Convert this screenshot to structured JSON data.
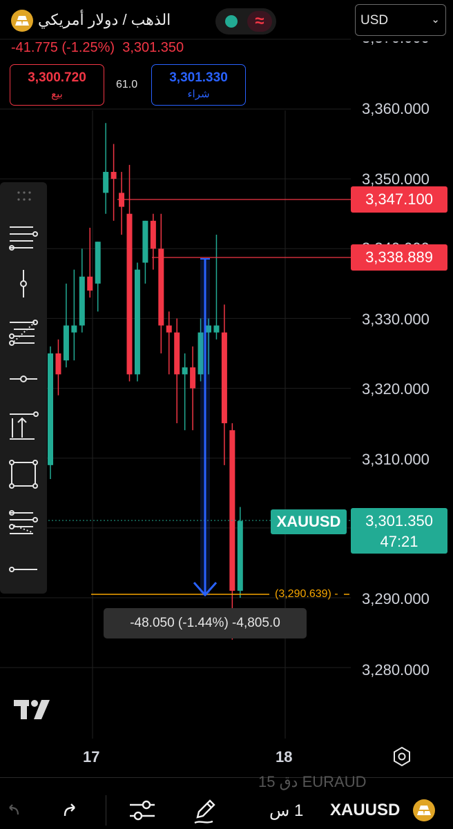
{
  "header": {
    "instrument_title": "الذهب / دولار أمريكي",
    "currency": "USD",
    "change": "-41.775 (-1.25%)",
    "last_price": "3,301.350"
  },
  "trade": {
    "sell_price": "3,300.720",
    "sell_label": "بيع",
    "buy_price": "3,301.330",
    "buy_label": "شراء",
    "spread": "61.0"
  },
  "axis": {
    "y_ticks": [
      "3,360.000",
      "3,350.000",
      "3,340.000",
      "3,330.000",
      "3,320.000",
      "3,310.000",
      "3,290.000",
      "3,280.000"
    ],
    "y_top_partial": "3,370.000",
    "x_ticks": [
      "17",
      "18"
    ]
  },
  "levels": {
    "line1": "3,347.100",
    "line2": "3,338.889",
    "current_symbol": "XAUUSD",
    "current_price": "3,301.350",
    "countdown": "47:21",
    "target_label": "(3,290.639)",
    "measure_text": "-48.050 (-1.44%) -4,805.0"
  },
  "toolbar_items": [
    "horizontal-rays-icon",
    "vertical-line-icon",
    "fib-retracement-icon",
    "horizontal-ray-icon",
    "long-position-icon",
    "rectangle-icon",
    "fib-extension-icon",
    "horizontal-line-icon"
  ],
  "bottom": {
    "ghost_text": "15 دق   EURAUD",
    "timeframe": "1 س",
    "symbol": "XAUUSD"
  },
  "colors": {
    "up": "#22ab94",
    "down": "#f23645",
    "measure": "#2962ff",
    "target": "#f7a600"
  },
  "chart_data": {
    "type": "candlestick",
    "y_range": [
      3276,
      3376
    ],
    "candles": [
      {
        "o": 3309,
        "h": 3326,
        "l": 3307,
        "c": 3325
      },
      {
        "o": 3325,
        "h": 3327,
        "l": 3319,
        "c": 3322
      },
      {
        "o": 3324,
        "h": 3335,
        "l": 3323,
        "c": 3329
      },
      {
        "o": 3328,
        "h": 3337,
        "l": 3324,
        "c": 3329
      },
      {
        "o": 3329,
        "h": 3340,
        "l": 3328,
        "c": 3336
      },
      {
        "o": 3336,
        "h": 3343,
        "l": 3333,
        "c": 3334
      },
      {
        "o": 3335,
        "h": 3341,
        "l": 3331,
        "c": 3341
      },
      {
        "o": 3348,
        "h": 3358,
        "l": 3345,
        "c": 3351
      },
      {
        "o": 3351,
        "h": 3355,
        "l": 3344,
        "c": 3350
      },
      {
        "o": 3348,
        "h": 3351,
        "l": 3342,
        "c": 3346
      },
      {
        "o": 3345,
        "h": 3352,
        "l": 3321,
        "c": 3322
      },
      {
        "o": 3322,
        "h": 3338,
        "l": 3321,
        "c": 3337
      },
      {
        "o": 3338,
        "h": 3344,
        "l": 3335,
        "c": 3344
      },
      {
        "o": 3344,
        "h": 3345,
        "l": 3337,
        "c": 3340
      },
      {
        "o": 3340,
        "h": 3345,
        "l": 3325,
        "c": 3329
      },
      {
        "o": 3329,
        "h": 3331,
        "l": 3322,
        "c": 3328
      },
      {
        "o": 3328,
        "h": 3330,
        "l": 3315,
        "c": 3322
      },
      {
        "o": 3322,
        "h": 3325,
        "l": 3314,
        "c": 3323
      },
      {
        "o": 3323,
        "h": 3326,
        "l": 3314,
        "c": 3320
      },
      {
        "o": 3322,
        "h": 3330,
        "l": 3321,
        "c": 3328
      },
      {
        "o": 3328,
        "h": 3330,
        "l": 3322,
        "c": 3329
      },
      {
        "o": 3328,
        "h": 3342,
        "l": 3327,
        "c": 3329
      },
      {
        "o": 3328,
        "h": 3332,
        "l": 3309,
        "c": 3315
      },
      {
        "o": 3314,
        "h": 3315,
        "l": 3284,
        "c": 3291
      },
      {
        "o": 3291,
        "h": 3303,
        "l": 3290,
        "c": 3301
      }
    ]
  }
}
